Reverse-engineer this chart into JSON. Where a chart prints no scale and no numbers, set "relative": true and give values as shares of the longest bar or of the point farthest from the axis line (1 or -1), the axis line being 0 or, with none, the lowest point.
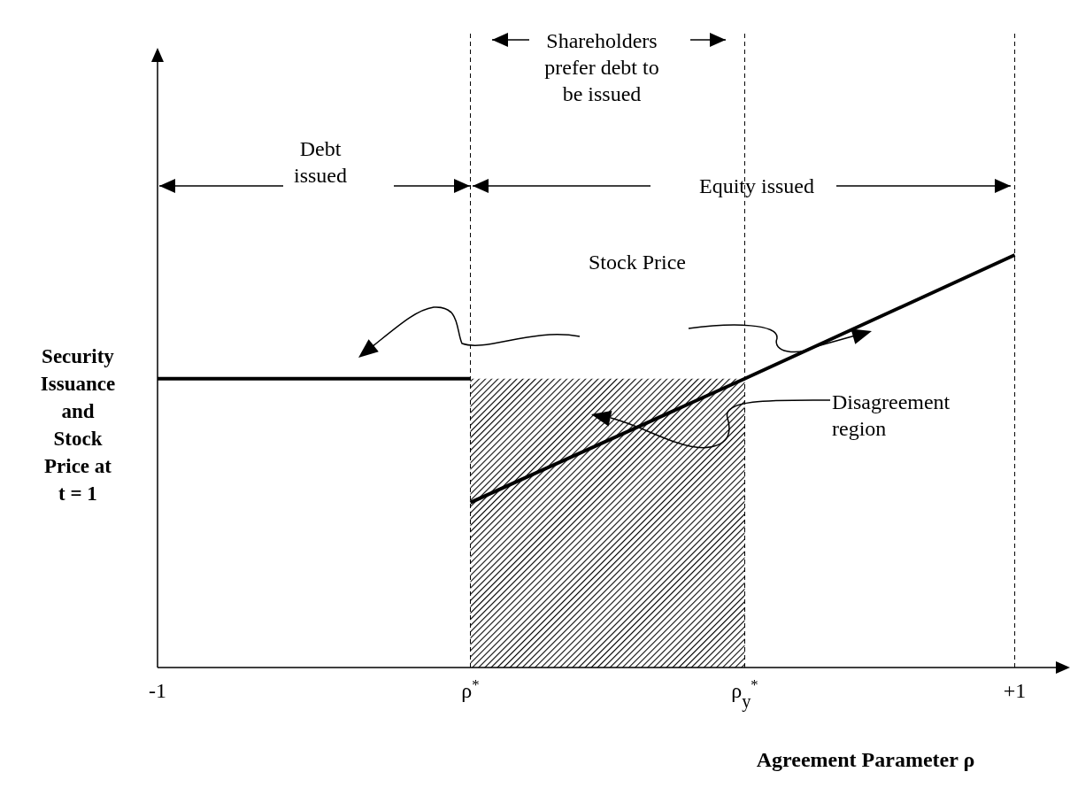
{
  "chart_data": {
    "type": "line",
    "relative": true,
    "xlabel": "Agreement Parameter ρ",
    "ylabel": "Security Issuance and Stock Price at t = 1",
    "xlim": [
      -1,
      1.1
    ],
    "xticks": [
      {
        "value": -1,
        "label": "-1"
      },
      {
        "value": -0.27,
        "label": "ρ$^{*}$"
      },
      {
        "value": 0.37,
        "label": "ρ$_{y}$$^{*}$"
      },
      {
        "value": 1,
        "label": "+1"
      }
    ],
    "series": [
      {
        "type": "area",
        "color": "#000000",
        "x": [
          -0.27,
          0.37
        ],
        "values": [
          0.7,
          0.7
        ]
      },
      {
        "type": "line",
        "color": "#000000",
        "x": [
          -1,
          -0.27
        ],
        "values": [
          0.7,
          0.7
        ]
      },
      {
        "color": "#000000",
        "x": [
          -0.27,
          0.37,
          1
        ],
        "values": [
          0.4,
          0.7,
          1
        ]
      }
    ],
    "ref_lines": [
      {
        "axis": "x",
        "value": -0.27,
        "line_style": "dashed"
      },
      {
        "axis": "x",
        "value": 0.37,
        "line_style": "dashed"
      },
      {
        "axis": "x",
        "value": 1,
        "line_style": "dashed"
      }
    ],
    "annotations": [
      "Debt issued",
      "Equity issued",
      "Shareholders prefer debt to be issued",
      "Stock Price",
      "Disagreement region"
    ]
  }
}
